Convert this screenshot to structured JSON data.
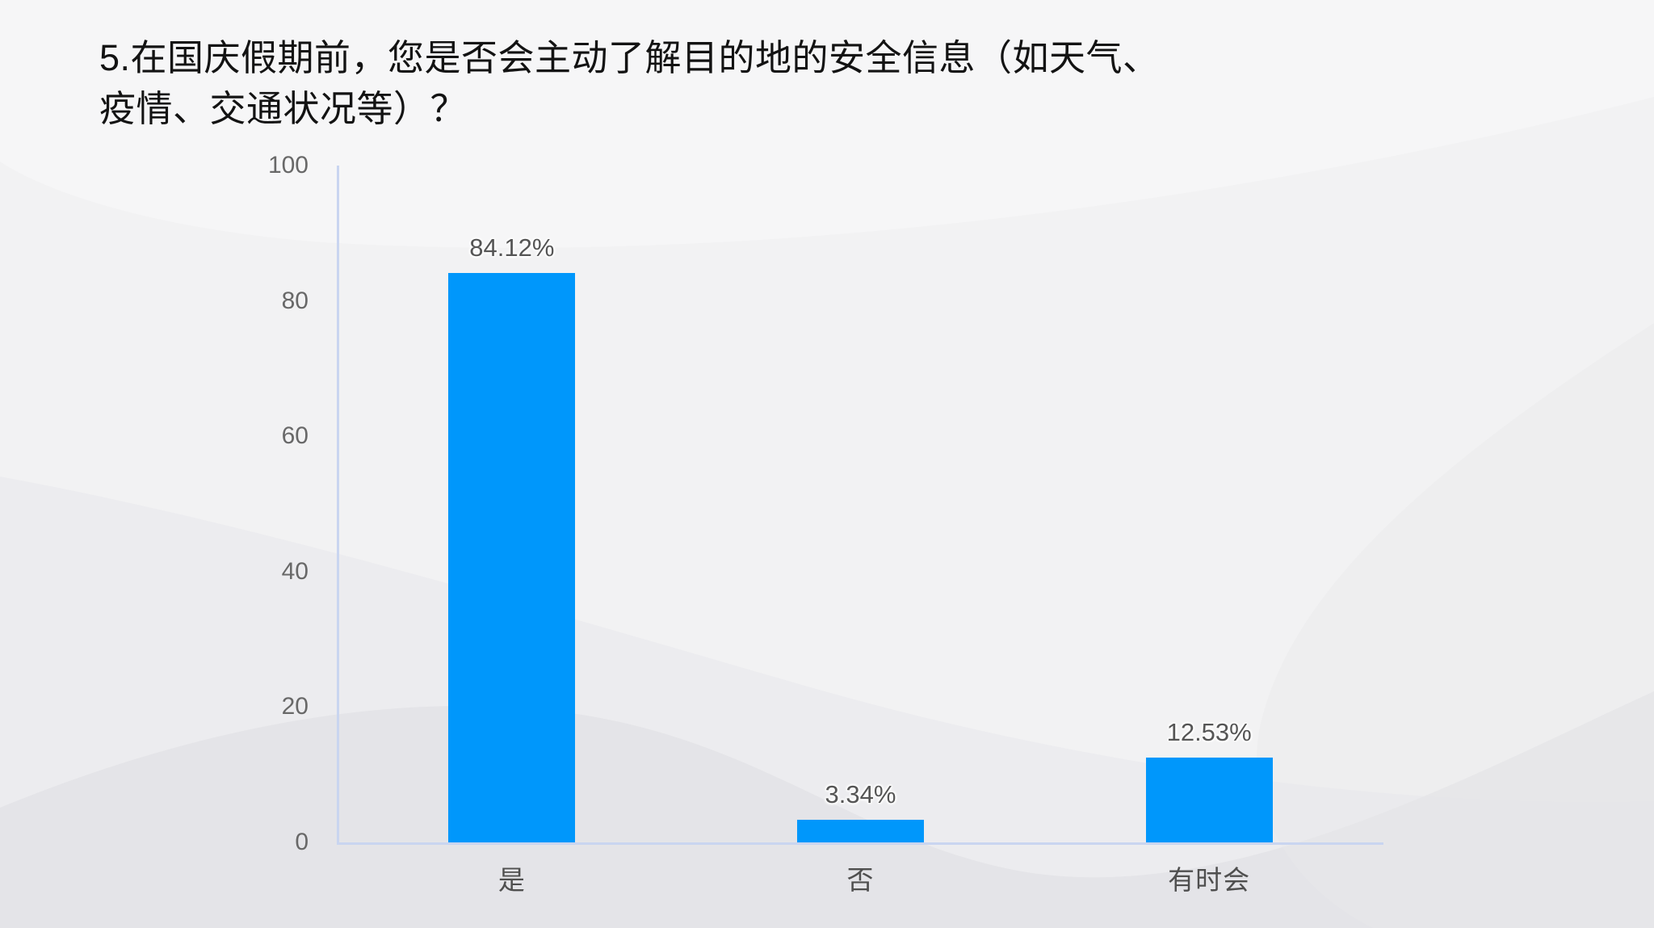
{
  "slide": {
    "title_lines": [
      "5.在国庆假期前，您是否会主动了解目的地的安全信息（如天气、",
      "疫情、交通状况等）？"
    ]
  },
  "chart_data": {
    "type": "bar",
    "title": "5.在国庆假期前，您是否会主动了解目的地的安全信息（如天气、疫情、交通状况等）？",
    "categories": [
      "是",
      "否",
      "有时会"
    ],
    "values": [
      84.12,
      3.34,
      12.53
    ],
    "value_labels": [
      "84.12%",
      "3.34%",
      "12.53%"
    ],
    "xlabel": "",
    "ylabel": "",
    "ylim": [
      0,
      100
    ],
    "yticks": [
      0,
      20,
      40,
      60,
      80,
      100
    ],
    "grid": false,
    "legend_position": "none",
    "colors": {
      "bar": "#0097fb",
      "axis_line": "#c9d5f0",
      "tick_label": "#686868",
      "value_label": "#555555",
      "category_label": "#4f4f4f",
      "title": "#131313",
      "background": "#f2f2f3"
    }
  }
}
